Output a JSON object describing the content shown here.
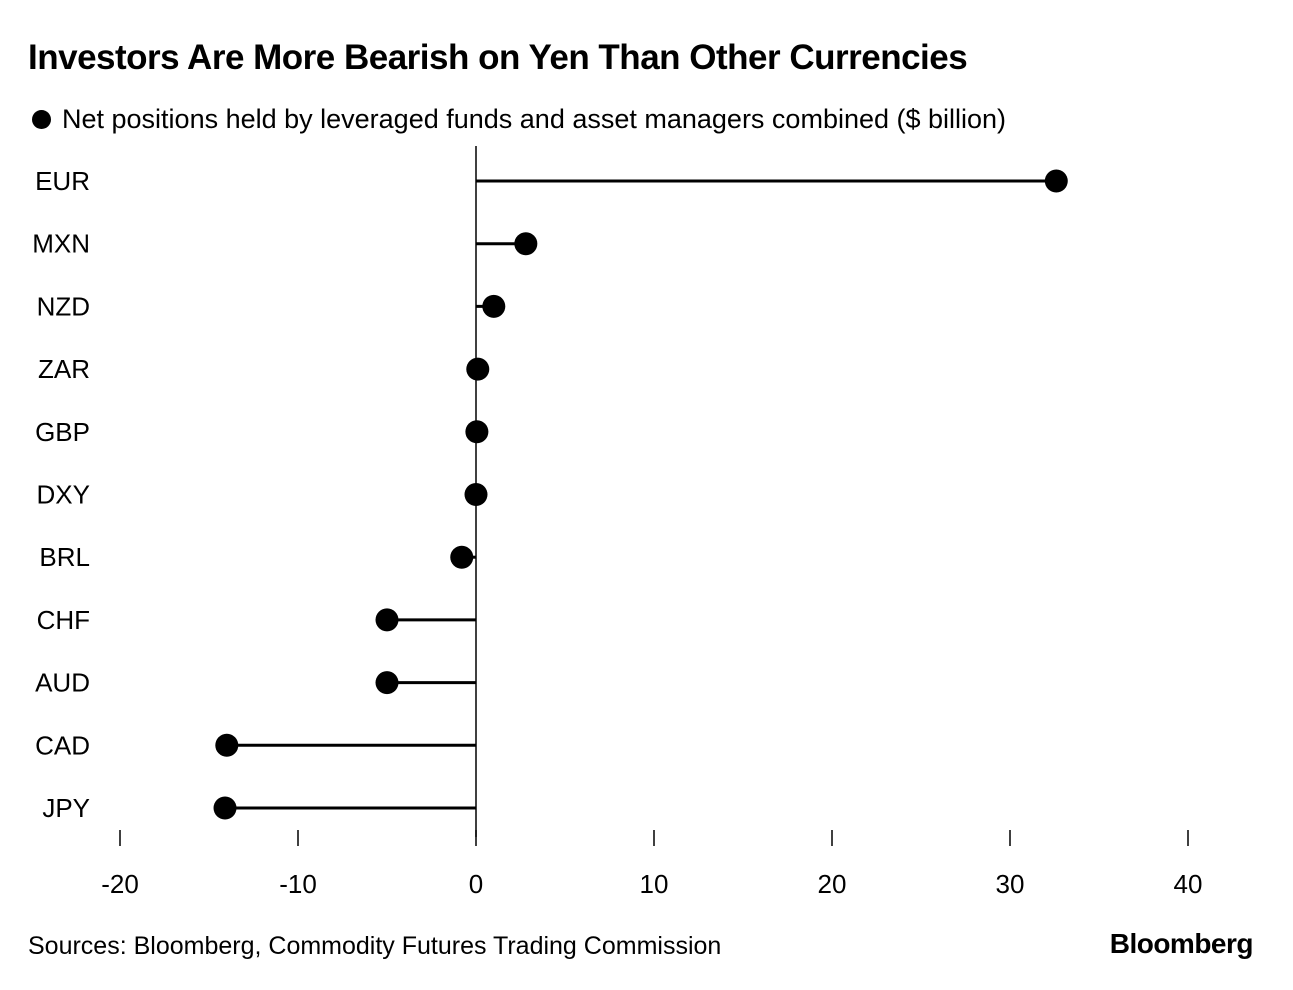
{
  "chart_data": {
    "type": "lollipop",
    "title": "Investors Are More Bearish on Yen Than Other Currencies",
    "legend": "Net positions held by leveraged funds and asset managers combined ($ billion)",
    "categories": [
      "EUR",
      "MXN",
      "NZD",
      "ZAR",
      "GBP",
      "DXY",
      "BRL",
      "CHF",
      "AUD",
      "CAD",
      "JPY"
    ],
    "values": [
      32.6,
      2.8,
      1.0,
      0.1,
      0.05,
      0.0,
      -0.8,
      -5.0,
      -5.0,
      -14.0,
      -14.1
    ],
    "xlim": [
      -20,
      40
    ],
    "xticks": [
      "-20",
      "-10",
      "0",
      "10",
      "20",
      "30",
      "40"
    ],
    "xtick_values": [
      -20,
      -10,
      0,
      10,
      20,
      30,
      40
    ],
    "xlabel": "",
    "ylabel": "",
    "grid": false,
    "color": "#000000"
  },
  "footer": {
    "source": "Sources: Bloomberg, Commodity Futures Trading Commission",
    "brand": "Bloomberg"
  }
}
